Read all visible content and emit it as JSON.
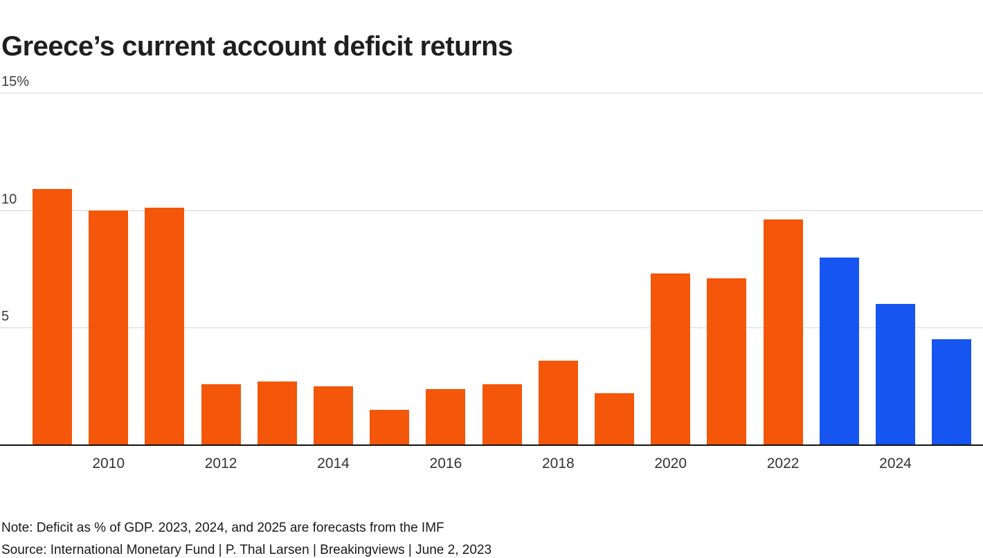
{
  "title": "Greece’s current account deficit returns",
  "note": "Note: Deficit as % of GDP. 2023, 2024, and 2025 are forecasts from the IMF",
  "source": "Source: International Monetary Fund | P. Thal Larsen | Breakingviews | June 2, 2023",
  "chart_data": {
    "type": "bar",
    "title": "Greece’s current account deficit returns",
    "unit": "% of GDP",
    "x": [
      2009,
      2010,
      2011,
      2012,
      2013,
      2014,
      2015,
      2016,
      2017,
      2018,
      2019,
      2020,
      2021,
      2022,
      2023,
      2024,
      2025
    ],
    "values": [
      10.9,
      10.0,
      10.1,
      2.6,
      2.7,
      2.5,
      1.5,
      2.4,
      2.6,
      3.6,
      2.2,
      7.3,
      7.1,
      9.6,
      8.0,
      6.0,
      4.5
    ],
    "forecast_years": [
      2023,
      2024,
      2025
    ],
    "colors": {
      "actual": "#f4560a",
      "forecast": "#1655f0"
    },
    "ylim": [
      0,
      15
    ],
    "yticks": [
      15,
      10,
      5
    ],
    "ytick_labels": [
      "15%",
      "10",
      "5"
    ],
    "xticks": [
      2010,
      2012,
      2014,
      2016,
      2018,
      2020,
      2022,
      2024
    ],
    "grid": true,
    "legend": false
  }
}
